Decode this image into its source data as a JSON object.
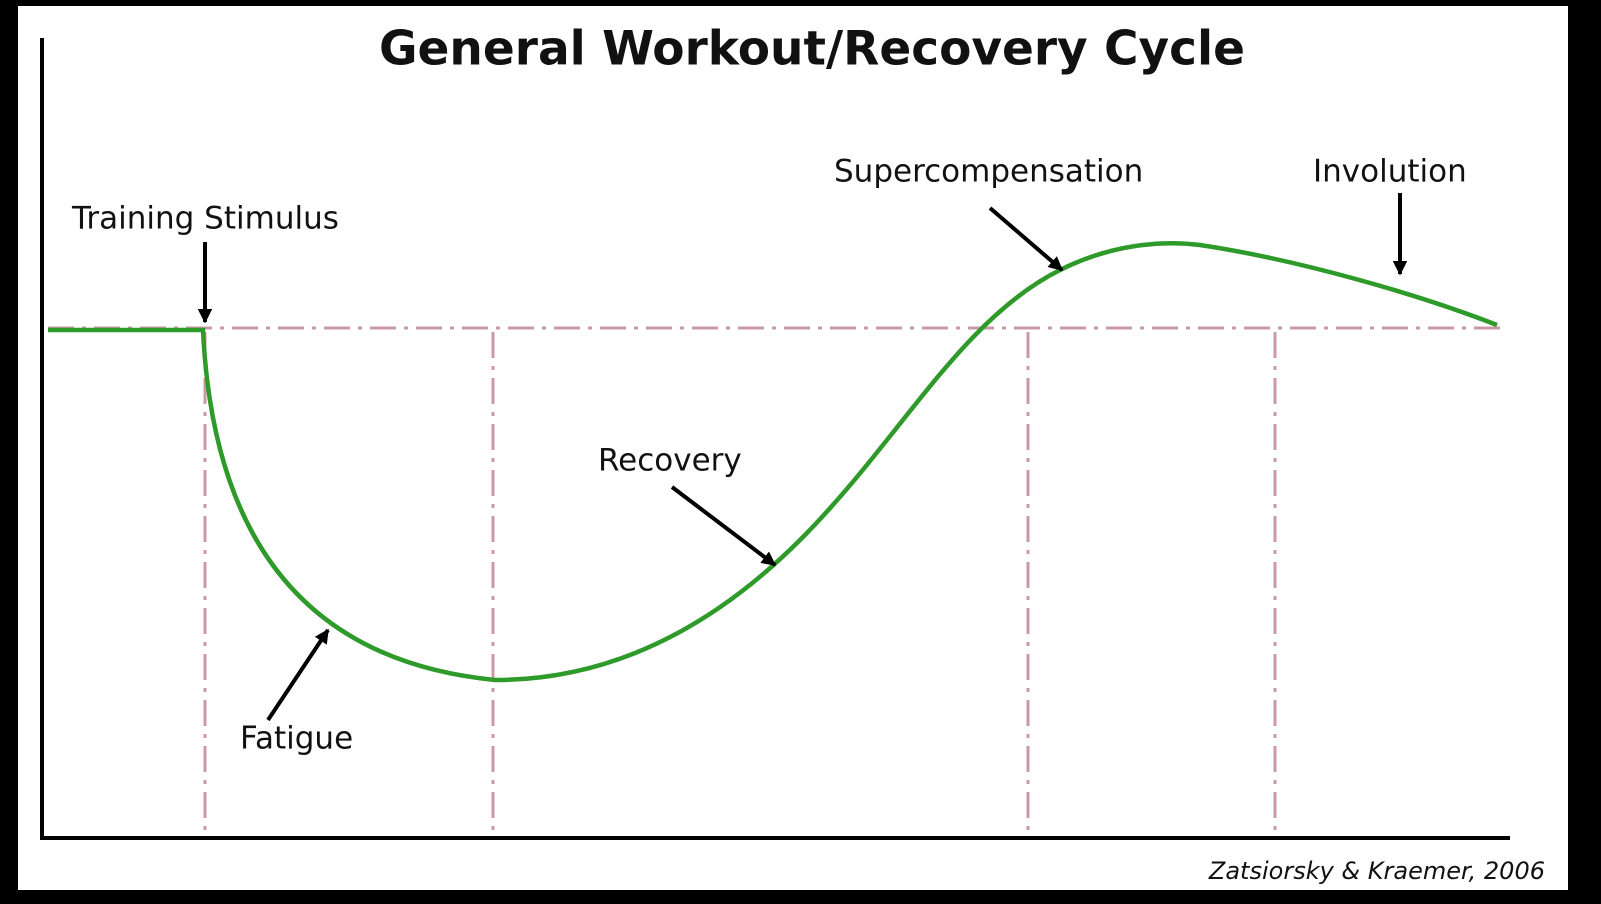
{
  "title": "General Workout/Recovery Cycle",
  "labels": {
    "training_stimulus": "Training Stimulus",
    "supercompensation": "Supercompensation",
    "involution": "Involution",
    "recovery": "Recovery",
    "fatigue": "Fatigue"
  },
  "citation": "Zatsiorsky & Kraemer, 2006"
}
